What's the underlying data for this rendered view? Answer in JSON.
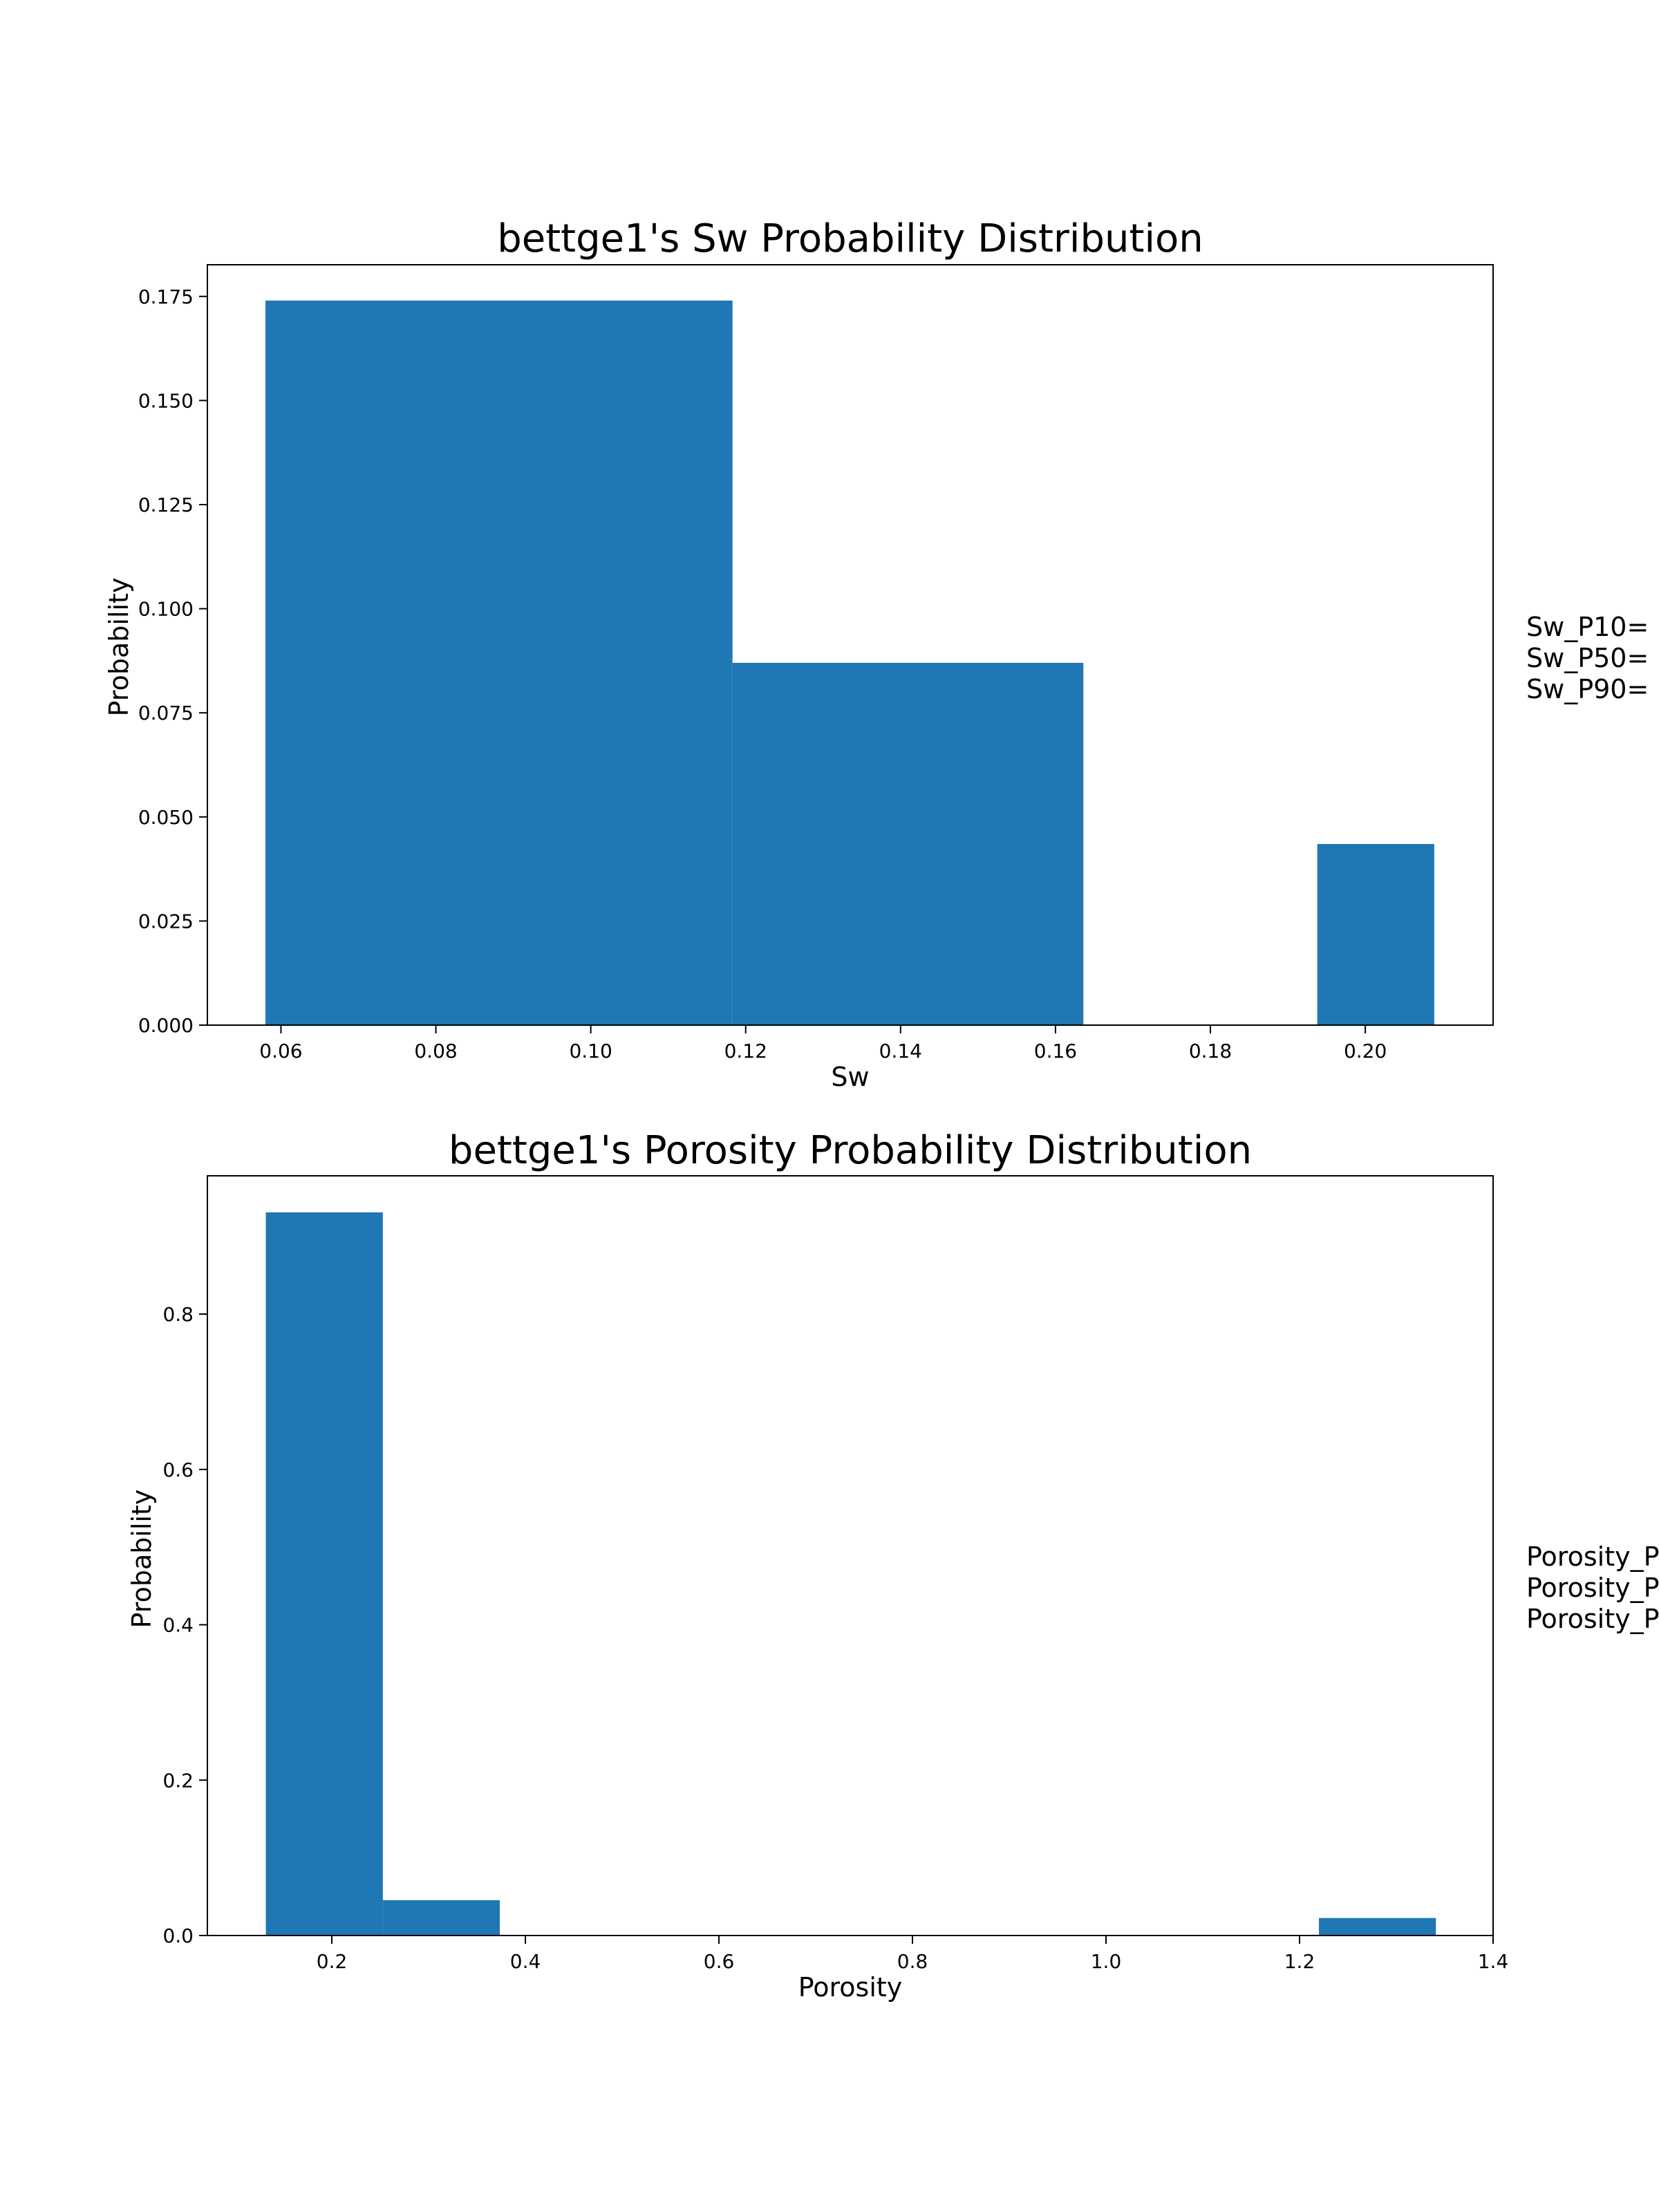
{
  "colors": {
    "bar": "#1f77b4",
    "axis": "#000000",
    "background": "#ffffff"
  },
  "chart_data": [
    {
      "type": "bar",
      "title": "bettge1's Sw Probability Distribution",
      "xlabel": "Sw",
      "ylabel": "Probability",
      "xlim": [
        0.0505,
        0.2165
      ],
      "ylim": [
        0,
        0.1826
      ],
      "xticks": [
        {
          "value": 0.06,
          "label": "0.06"
        },
        {
          "value": 0.08,
          "label": "0.08"
        },
        {
          "value": 0.1,
          "label": "0.10"
        },
        {
          "value": 0.12,
          "label": "0.12"
        },
        {
          "value": 0.14,
          "label": "0.14"
        },
        {
          "value": 0.16,
          "label": "0.16"
        },
        {
          "value": 0.18,
          "label": "0.18"
        },
        {
          "value": 0.2,
          "label": "0.20"
        }
      ],
      "yticks": [
        {
          "value": 0.0,
          "label": "0.000"
        },
        {
          "value": 0.025,
          "label": "0.025"
        },
        {
          "value": 0.05,
          "label": "0.050"
        },
        {
          "value": 0.075,
          "label": "0.075"
        },
        {
          "value": 0.1,
          "label": "0.100"
        },
        {
          "value": 0.125,
          "label": "0.125"
        },
        {
          "value": 0.15,
          "label": "0.150"
        },
        {
          "value": 0.175,
          "label": "0.175"
        }
      ],
      "bins": [
        {
          "x0": 0.058,
          "x1": 0.1183,
          "value": 0.174
        },
        {
          "x0": 0.1183,
          "x1": 0.1636,
          "value": 0.087
        },
        {
          "x0": 0.1636,
          "x1": 0.1938,
          "value": 0.0
        },
        {
          "x0": 0.1938,
          "x1": 0.2089,
          "value": 0.0435
        }
      ],
      "annotation_lines": [
        "Sw_P10=",
        "Sw_P50=",
        "Sw_P90="
      ]
    },
    {
      "type": "bar",
      "title": "bettge1's Porosity Probability Distribution",
      "xlabel": "Porosity",
      "ylabel": "Probability",
      "xlim": [
        0.0714,
        1.4
      ],
      "ylim": [
        0,
        0.978
      ],
      "xticks": [
        {
          "value": 0.2,
          "label": "0.2"
        },
        {
          "value": 0.4,
          "label": "0.4"
        },
        {
          "value": 0.6,
          "label": "0.6"
        },
        {
          "value": 0.8,
          "label": "0.8"
        },
        {
          "value": 1.0,
          "label": "1.0"
        },
        {
          "value": 1.2,
          "label": "1.2"
        },
        {
          "value": 1.4,
          "label": "1.4"
        }
      ],
      "yticks": [
        {
          "value": 0.0,
          "label": "0.0"
        },
        {
          "value": 0.2,
          "label": "0.2"
        },
        {
          "value": 0.4,
          "label": "0.4"
        },
        {
          "value": 0.6,
          "label": "0.6"
        },
        {
          "value": 0.8,
          "label": "0.8"
        }
      ],
      "bins": [
        {
          "x0": 0.1318,
          "x1": 0.2527,
          "value": 0.931
        },
        {
          "x0": 0.2527,
          "x1": 0.3736,
          "value": 0.0455
        },
        {
          "x0": 0.3736,
          "x1": 1.22,
          "value": 0.0
        },
        {
          "x0": 1.22,
          "x1": 1.3409,
          "value": 0.0225
        }
      ],
      "annotation_lines": [
        "Porosity_P",
        "Porosity_P",
        "Porosity_P"
      ]
    }
  ]
}
